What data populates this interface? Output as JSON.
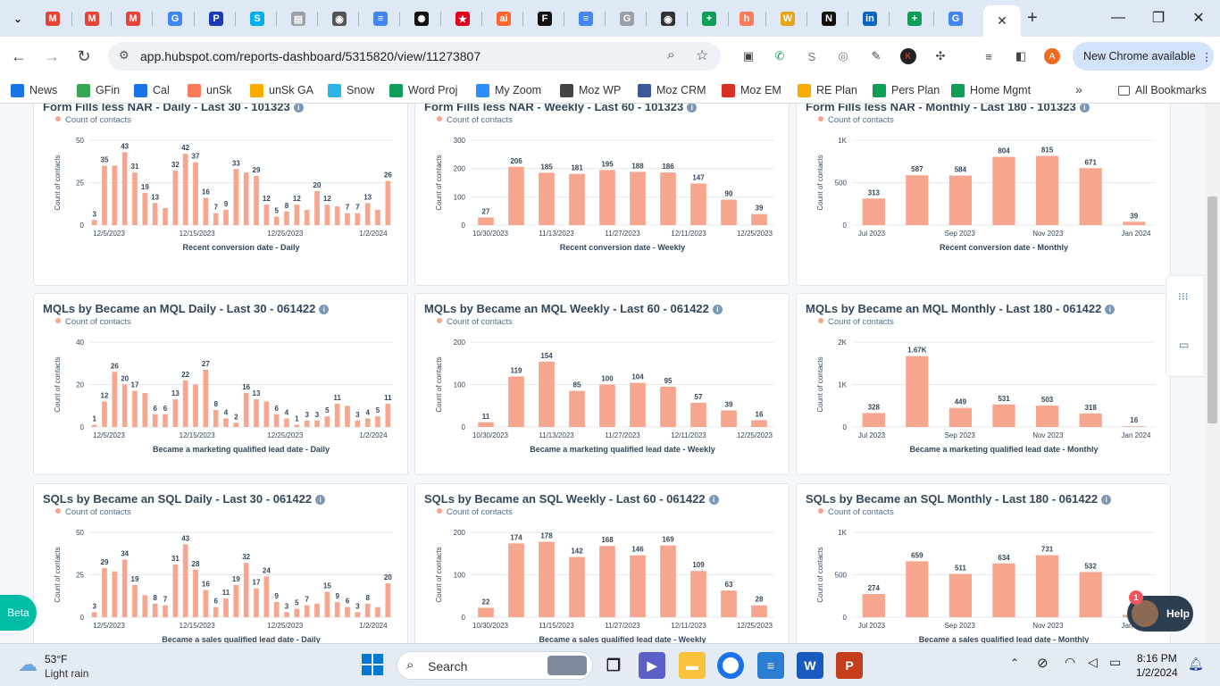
{
  "browser": {
    "tabs": [
      {
        "icon": "chevron-down-icon",
        "color": "#1f1f1f",
        "glyph": "⌄"
      },
      {
        "icon": "gmail-icon",
        "color": "#ea4335",
        "glyph": "M"
      },
      {
        "icon": "gmail-icon",
        "color": "#ea4335",
        "glyph": "M"
      },
      {
        "icon": "gmail-icon",
        "color": "#ea4335",
        "glyph": "M"
      },
      {
        "icon": "google-icon",
        "color": "#4285f4",
        "glyph": "G"
      },
      {
        "icon": "parking-icon",
        "color": "#1a3bb3",
        "glyph": "P"
      },
      {
        "icon": "skype-icon",
        "color": "#00aff0",
        "glyph": "S"
      },
      {
        "icon": "document-icon",
        "color": "#9aa0a6",
        "glyph": "▤"
      },
      {
        "icon": "globe-icon",
        "color": "#555555",
        "glyph": "◉"
      },
      {
        "icon": "google-docs-icon",
        "color": "#4285f4",
        "glyph": "≡"
      },
      {
        "icon": "openai-icon",
        "color": "#111111",
        "glyph": "✺"
      },
      {
        "icon": "star-icon",
        "color": "#e0001b",
        "glyph": "★"
      },
      {
        "icon": "semrush-icon",
        "color": "#ff642d",
        "glyph": "ai"
      },
      {
        "icon": "formstack-icon",
        "color": "#111111",
        "glyph": "F"
      },
      {
        "icon": "google-docs-icon",
        "color": "#4285f4",
        "glyph": "≡"
      },
      {
        "icon": "google-icon",
        "color": "#9aa0a6",
        "glyph": "G"
      },
      {
        "icon": "camera-icon",
        "color": "#333333",
        "glyph": "◉"
      },
      {
        "icon": "google-sheets-icon",
        "color": "#0f9d58",
        "glyph": "+"
      },
      {
        "icon": "hubspot-icon",
        "color": "#ff7a59",
        "glyph": "h"
      },
      {
        "icon": "wikipedia-icon",
        "color": "#e8a317",
        "glyph": "W"
      },
      {
        "icon": "notion-icon",
        "color": "#111111",
        "glyph": "N"
      },
      {
        "icon": "linkedin-icon",
        "color": "#0a66c2",
        "glyph": "in"
      },
      {
        "icon": "google-sheets-icon",
        "color": "#0f9d58",
        "glyph": "+"
      },
      {
        "icon": "google-icon",
        "color": "#4285f4",
        "glyph": "G"
      }
    ],
    "active_tab_icon": "close-icon",
    "new_tab_label": "+",
    "window_controls": {
      "minimize": "—",
      "restore": "❐",
      "close": "✕"
    },
    "url": "app.hubspot.com/reports-dashboard/5315820/view/11273807",
    "new_chrome_label": "New Chrome available",
    "profile_initial": "A",
    "bookmarks": [
      {
        "label": "News",
        "icon": "news-icon",
        "color": "#1a73e8"
      },
      {
        "label": "GFin",
        "icon": "finance-icon",
        "color": "#34a853"
      },
      {
        "label": "Cal",
        "icon": "calendar-icon",
        "color": "#1a73e8"
      },
      {
        "label": "unSk",
        "icon": "hubspot-icon",
        "color": "#ff7a59"
      },
      {
        "label": "unSk GA",
        "icon": "analytics-icon",
        "color": "#f9ab00"
      },
      {
        "label": "Snow",
        "icon": "shield-icon",
        "color": "#29b5e8"
      },
      {
        "label": "Word Proj",
        "icon": "google-sheets-icon",
        "color": "#0f9d58"
      },
      {
        "label": "My Zoom",
        "icon": "zoom-icon",
        "color": "#2d8cff"
      },
      {
        "label": "Moz WP",
        "icon": "wordpress-icon",
        "color": "#444444"
      },
      {
        "label": "Moz CRM",
        "icon": "crm-icon",
        "color": "#3b5998"
      },
      {
        "label": "Moz EM",
        "icon": "email-icon",
        "color": "#d93025"
      },
      {
        "label": "RE Plan",
        "icon": "folder-icon",
        "color": "#f9ab00"
      },
      {
        "label": "Pers Plan",
        "icon": "google-sheets-icon",
        "color": "#0f9d58"
      },
      {
        "label": "Home Mgmt",
        "icon": "google-sheets-icon",
        "color": "#0f9d58"
      }
    ],
    "bookmarks_overflow": "»",
    "all_bookmarks": "All Bookmarks"
  },
  "dashboard": {
    "legend_label": "Count of contacts",
    "y_axis_label": "Count of contacts",
    "beta_label": "Beta",
    "help_label": "Help",
    "help_badge": "1",
    "bar_color": "#f6a58e"
  },
  "chart_data": [
    {
      "id": "ff-daily",
      "type": "bar",
      "title": "Form Fills less NAR - Daily - Last 30 - 101323",
      "xlabel": "Recent conversion date - Daily",
      "ylabel": "Count of contacts",
      "ylim": [
        0,
        50
      ],
      "yticks": [
        "0",
        "25",
        "50"
      ],
      "ytick_values": [
        0,
        25,
        50
      ],
      "values": [
        3,
        35,
        43,
        31,
        19,
        13,
        32,
        42,
        37,
        16,
        7,
        9,
        33,
        29,
        12,
        5,
        8,
        12,
        20,
        12,
        7,
        7,
        13,
        26
      ],
      "bar_labels": [
        "3",
        "35",
        "43",
        "31",
        "19",
        "13",
        "32",
        "42",
        "37",
        "16",
        "7",
        "9",
        "33",
        "29",
        "12",
        "5",
        "8",
        "12",
        "20",
        "12",
        "7",
        "7",
        "13",
        "26"
      ],
      "label_rule": "daily",
      "x_tick_labels": [
        "12/5/2023",
        "12/15/2023",
        "12/25/2023",
        "1/2/2024"
      ],
      "daily_values": [
        3,
        35,
        35,
        43,
        31,
        19,
        13,
        10,
        32,
        42,
        37,
        16,
        7,
        9,
        33,
        31,
        29,
        12,
        5,
        8,
        12,
        9,
        20,
        12,
        11,
        7,
        7,
        13,
        9,
        26
      ]
    },
    {
      "id": "ff-weekly",
      "type": "bar",
      "title": "Form Fills less NAR - Weekly - Last 60 - 101323",
      "xlabel": "Recent conversion date - Weekly",
      "ylabel": "Count of contacts",
      "ylim": [
        0,
        300
      ],
      "yticks": [
        "0",
        "100",
        "200",
        "300"
      ],
      "ytick_values": [
        0,
        100,
        200,
        300
      ],
      "values": [
        27,
        206,
        185,
        181,
        195,
        188,
        186,
        147,
        90,
        39
      ],
      "bar_labels": [
        "27",
        "206",
        "185",
        "181",
        "195",
        "188",
        "186",
        "147",
        "90",
        "39"
      ],
      "x_tick_labels": [
        "10/30/2023",
        "11/13/2023",
        "11/27/2023",
        "12/11/2023",
        "12/25/2023"
      ]
    },
    {
      "id": "ff-monthly",
      "type": "bar",
      "title": "Form Fills less NAR - Monthly - Last 180 - 101323",
      "xlabel": "Recent conversion date - Monthly",
      "ylabel": "Count of contacts",
      "ylim": [
        0,
        1000
      ],
      "yticks": [
        "0",
        "500",
        "1K"
      ],
      "ytick_values": [
        0,
        500,
        1000
      ],
      "values": [
        313,
        587,
        584,
        804,
        815,
        671,
        39
      ],
      "bar_labels": [
        "313",
        "587",
        "584",
        "804",
        "815",
        "671",
        "39"
      ],
      "x_tick_labels": [
        "Jul 2023",
        "Sep 2023",
        "Nov 2023",
        "Jan 2024"
      ]
    },
    {
      "id": "mql-daily",
      "type": "bar",
      "title": "MQLs by Became an MQL Daily - Last 30 - 061422",
      "xlabel": "Became a marketing qualified lead date - Daily",
      "ylabel": "Count of contacts",
      "ylim": [
        0,
        40
      ],
      "yticks": [
        "0",
        "20",
        "40"
      ],
      "ytick_values": [
        0,
        20,
        40
      ],
      "bar_labels": [
        "1",
        "12",
        "26",
        "20",
        "17",
        "6",
        "6",
        "13",
        "22",
        "27",
        "8",
        "4",
        "2",
        "16",
        "13",
        "6",
        "4",
        "1",
        "3",
        "3",
        "5",
        "11",
        "3",
        "4",
        "5",
        "11"
      ],
      "daily_values": [
        1,
        12,
        26,
        20,
        17,
        16,
        6,
        6,
        13,
        22,
        20,
        27,
        8,
        4,
        2,
        16,
        13,
        12,
        6,
        4,
        1,
        3,
        3,
        5,
        11,
        10,
        3,
        4,
        5,
        11
      ],
      "x_tick_labels": [
        "12/5/2023",
        "12/15/2023",
        "12/25/2023",
        "1/2/2024"
      ]
    },
    {
      "id": "mql-weekly",
      "type": "bar",
      "title": "MQLs by Became an MQL Weekly - Last 60 - 061422",
      "xlabel": "Became a marketing qualified lead date - Weekly",
      "ylabel": "Count of contacts",
      "ylim": [
        0,
        200
      ],
      "yticks": [
        "0",
        "100",
        "200"
      ],
      "ytick_values": [
        0,
        100,
        200
      ],
      "values": [
        11,
        119,
        154,
        85,
        100,
        104,
        95,
        57,
        39,
        16
      ],
      "bar_labels": [
        "11",
        "119",
        "154",
        "85",
        "100",
        "104",
        "95",
        "57",
        "39",
        "16"
      ],
      "x_tick_labels": [
        "10/30/2023",
        "11/13/2023",
        "11/27/2023",
        "12/11/2023",
        "12/25/2023"
      ]
    },
    {
      "id": "mql-monthly",
      "type": "bar",
      "title": "MQLs by Became an MQL Monthly - Last 180 - 061422",
      "xlabel": "Became a marketing qualified lead date - Monthly",
      "ylabel": "Count of contacts",
      "ylim": [
        0,
        2000
      ],
      "yticks": [
        "0",
        "1K",
        "2K"
      ],
      "ytick_values": [
        0,
        1000,
        2000
      ],
      "values": [
        328,
        1670,
        449,
        531,
        503,
        318,
        16
      ],
      "bar_labels": [
        "328",
        "1.67K",
        "449",
        "531",
        "503",
        "318",
        "16"
      ],
      "x_tick_labels": [
        "Jul 2023",
        "Sep 2023",
        "Nov 2023",
        "Jan 2024"
      ]
    },
    {
      "id": "sql-daily",
      "type": "bar",
      "title": "SQLs by Became an SQL Daily - Last 30 - 061422",
      "xlabel": "Became a sales qualified lead date - Daily",
      "ylabel": "Count of contacts",
      "ylim": [
        0,
        50
      ],
      "yticks": [
        "0",
        "25",
        "50"
      ],
      "ytick_values": [
        0,
        25,
        50
      ],
      "bar_labels": [
        "3",
        "29",
        "34",
        "19",
        "8",
        "7",
        "31",
        "43",
        "28",
        "16",
        "6",
        "11",
        "19",
        "32",
        "17",
        "24",
        "9",
        "3",
        "5",
        "7",
        "15",
        "9",
        "6",
        "3",
        "8",
        "20"
      ],
      "daily_values": [
        3,
        29,
        27,
        34,
        19,
        13,
        8,
        7,
        31,
        43,
        28,
        16,
        6,
        11,
        19,
        32,
        17,
        24,
        9,
        3,
        5,
        7,
        8,
        15,
        9,
        6,
        3,
        8,
        6,
        20
      ],
      "x_tick_labels": [
        "12/5/2023",
        "12/15/2023",
        "12/25/2023",
        "1/2/2024"
      ]
    },
    {
      "id": "sql-weekly",
      "type": "bar",
      "title": "SQLs by Became an SQL Weekly - Last 60 - 061422",
      "xlabel": "Became a sales qualified lead date - Weekly",
      "ylabel": "Count of contacts",
      "ylim": [
        0,
        200
      ],
      "yticks": [
        "0",
        "100",
        "200"
      ],
      "ytick_values": [
        0,
        100,
        200
      ],
      "values": [
        22,
        174,
        178,
        142,
        168,
        146,
        169,
        109,
        63,
        28
      ],
      "bar_labels": [
        "22",
        "174",
        "178",
        "142",
        "168",
        "146",
        "169",
        "109",
        "63",
        "28"
      ],
      "x_tick_labels": [
        "10/30/2023",
        "11/15/2023",
        "11/27/2023",
        "12/11/2023",
        "12/25/2023"
      ]
    },
    {
      "id": "sql-monthly",
      "type": "bar",
      "title": "SQLs by Became an SQL Monthly - Last 180 - 061422",
      "xlabel": "Became a sales qualified lead date - Monthly",
      "ylabel": "Count of contacts",
      "ylim": [
        0,
        1000
      ],
      "yticks": [
        "0",
        "500",
        "1K"
      ],
      "ytick_values": [
        0,
        500,
        1000
      ],
      "values": [
        274,
        659,
        511,
        634,
        731,
        532,
        28
      ],
      "bar_labels": [
        "274",
        "659",
        "511",
        "634",
        "731",
        "532",
        "28"
      ],
      "x_tick_labels": [
        "Jul 2023",
        "Sep 2023",
        "Nov 2023",
        "Jan 2024"
      ]
    }
  ],
  "taskbar": {
    "temperature": "53°F",
    "weather_desc": "Light rain",
    "search_placeholder": "Search",
    "time": "8:16 PM",
    "date": "1/2/2024"
  }
}
